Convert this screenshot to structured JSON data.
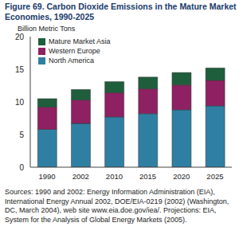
{
  "chart_data": {
    "type": "bar",
    "title": "Figure 69.  Carbon Dioxide Emissions in the Mature Market Economies, 1990-2025",
    "y_label": "Billion Metric Tons",
    "categories": [
      "1990",
      "2002",
      "2010",
      "2015",
      "2020",
      "2025"
    ],
    "series": [
      {
        "name": "North America",
        "color": "#2f7fa3",
        "values": [
          5.8,
          6.7,
          7.7,
          8.2,
          8.8,
          9.4
        ]
      },
      {
        "name": "Western Europe",
        "color": "#8e2162",
        "values": [
          3.4,
          3.6,
          3.7,
          3.8,
          3.8,
          3.9
        ]
      },
      {
        "name": "Mature Market Asia",
        "color": "#1f5e3c",
        "values": [
          1.3,
          1.6,
          1.7,
          1.8,
          1.9,
          1.9
        ]
      }
    ],
    "ylim": [
      0,
      20
    ],
    "yticks": [
      0,
      5,
      10,
      15,
      20
    ],
    "stacked": true,
    "grid": false,
    "legend": "upper left",
    "source": "Sources: 1990 and 2002: Energy Information Administration (EIA), International Energy Annual 2002, DOE/EIA-0219 (2002) (Washington, DC, March 2004), web site www.eia.doe.gov/iea/. Projections: EIA, System for the Analysis of Global Energy Markets (2005)."
  }
}
